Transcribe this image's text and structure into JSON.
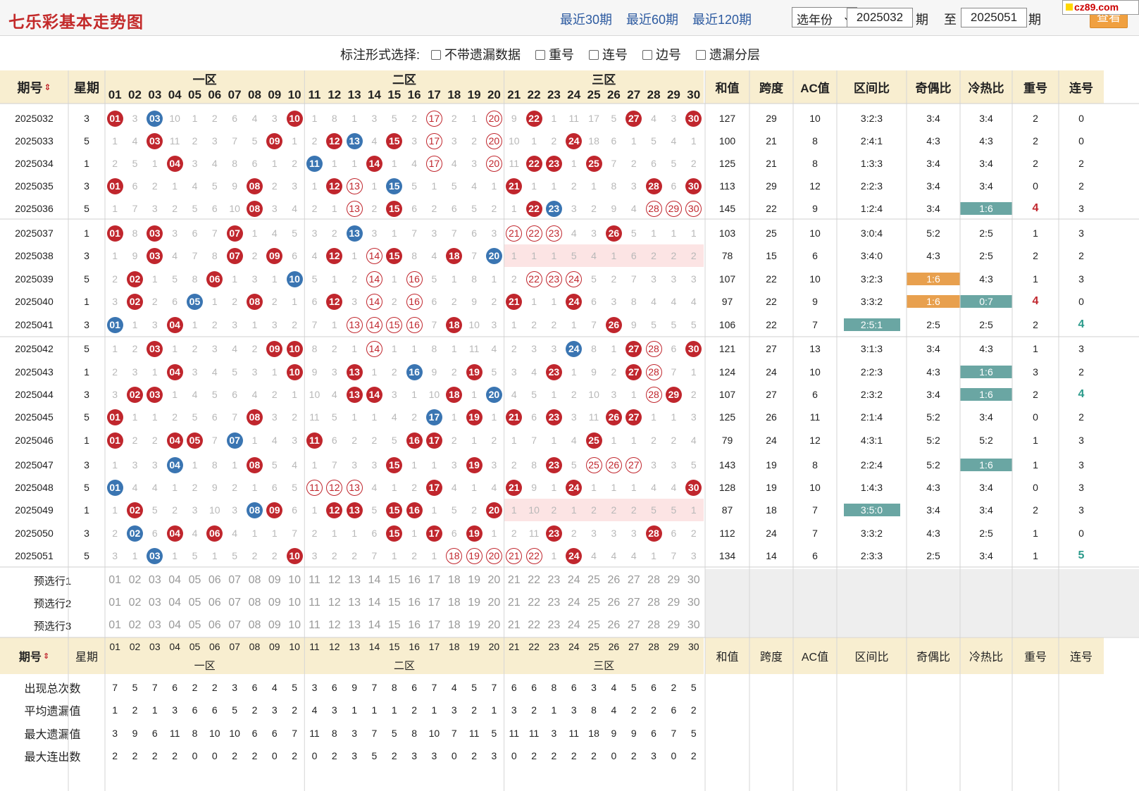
{
  "header": {
    "title": "七乐彩基本走势图",
    "quick_links": [
      "最近30期",
      "最近60期",
      "最近120期"
    ],
    "year_select": "选年份",
    "from_period": "2025032",
    "period_label": "期",
    "to_label": "至",
    "to_period": "2025051",
    "query_button": "查看",
    "watermark": "cz89.com"
  },
  "options": {
    "label": "标注形式选择:",
    "checkboxes": [
      "不带遗漏数据",
      "重号",
      "连号",
      "边号",
      "遗漏分层"
    ]
  },
  "table": {
    "col_period": "期号",
    "col_weekday": "星期",
    "zones": [
      "一区",
      "二区",
      "三区"
    ],
    "numbers": [
      "01",
      "02",
      "03",
      "04",
      "05",
      "06",
      "07",
      "08",
      "09",
      "10",
      "11",
      "12",
      "13",
      "14",
      "15",
      "16",
      "17",
      "18",
      "19",
      "20",
      "21",
      "22",
      "23",
      "24",
      "25",
      "26",
      "27",
      "28",
      "29",
      "30"
    ],
    "stat_headers": [
      "和值",
      "跨度",
      "AC值",
      "区间比",
      "奇偶比",
      "冷热比",
      "重号",
      "连号"
    ],
    "rows": [
      {
        "period": "2025032",
        "weekday": "3",
        "cells": [
          "01r",
          "3",
          "03b",
          "10",
          "1",
          "2",
          "6",
          "4",
          "3",
          "10r",
          "1",
          "8",
          "1",
          "3",
          "5",
          "2",
          "17o",
          "2",
          "1",
          "20o",
          "9",
          "22r",
          "1",
          "11",
          "17",
          "5",
          "27r",
          "4",
          "3",
          "30r"
        ],
        "sum": "127",
        "span": "29",
        "ac": "10",
        "zone_ratio": "3:2:3",
        "odd_even": "3:4",
        "cold_hot": "3:4",
        "repeat": "2",
        "consec": "0"
      },
      {
        "period": "2025033",
        "weekday": "5",
        "cells": [
          "1",
          "4",
          "03r",
          "11",
          "2",
          "3",
          "7",
          "5",
          "09r",
          "1",
          "2",
          "12r",
          "13b",
          "4",
          "15r",
          "3",
          "17o",
          "3",
          "2",
          "20o",
          "10",
          "1",
          "2",
          "24r",
          "18",
          "6",
          "1",
          "5",
          "4",
          "1"
        ],
        "sum": "100",
        "span": "21",
        "ac": "8",
        "zone_ratio": "2:4:1",
        "odd_even": "4:3",
        "cold_hot": "4:3",
        "repeat": "2",
        "consec": "0"
      },
      {
        "period": "2025034",
        "weekday": "1",
        "cells": [
          "2",
          "5",
          "1",
          "04r",
          "3",
          "4",
          "8",
          "6",
          "1",
          "2",
          "11b",
          "1",
          "1",
          "14r",
          "1",
          "4",
          "17o",
          "4",
          "3",
          "20o",
          "11",
          "22r",
          "23r",
          "1",
          "25r",
          "7",
          "2",
          "6",
          "5",
          "2"
        ],
        "sum": "125",
        "span": "21",
        "ac": "8",
        "zone_ratio": "1:3:3",
        "odd_even": "3:4",
        "cold_hot": "3:4",
        "repeat": "2",
        "consec": "2"
      },
      {
        "period": "2025035",
        "weekday": "3",
        "cells": [
          "01r",
          "6",
          "2",
          "1",
          "4",
          "5",
          "9",
          "08r",
          "2",
          "3",
          "1",
          "12r",
          "13o",
          "1",
          "15b",
          "5",
          "1",
          "5",
          "4",
          "1",
          "21r",
          "1",
          "1",
          "2",
          "1",
          "8",
          "3",
          "28r",
          "6",
          "30r"
        ],
        "sum": "113",
        "span": "29",
        "ac": "12",
        "zone_ratio": "2:2:3",
        "odd_even": "3:4",
        "cold_hot": "3:4",
        "repeat": "0",
        "consec": "2"
      },
      {
        "period": "2025036",
        "weekday": "5",
        "cells": [
          "1",
          "7",
          "3",
          "2",
          "5",
          "6",
          "10",
          "08r",
          "3",
          "4",
          "2",
          "1",
          "13o",
          "2",
          "15r",
          "6",
          "2",
          "6",
          "5",
          "2",
          "1",
          "22r",
          "23b",
          "3",
          "2",
          "9",
          "4",
          "28o",
          "29o",
          "30o"
        ],
        "sum": "145",
        "span": "22",
        "ac": "9",
        "zone_ratio": "1:2:4",
        "odd_even": "3:4",
        "cold_hot": "1:6",
        "cold_hot_tag": "teal",
        "repeat": "4",
        "repeat_hl": true,
        "consec": "3"
      },
      {
        "period": "2025037",
        "weekday": "1",
        "cells": [
          "01r",
          "8",
          "03r",
          "3",
          "6",
          "7",
          "07r",
          "1",
          "4",
          "5",
          "3",
          "2",
          "13b",
          "3",
          "1",
          "7",
          "3",
          "7",
          "6",
          "3",
          "21o",
          "22o",
          "23o",
          "4",
          "3",
          "26r",
          "5",
          "1",
          "1",
          "1"
        ],
        "sum": "103",
        "span": "25",
        "ac": "10",
        "zone_ratio": "3:0:4",
        "odd_even": "5:2",
        "cold_hot": "2:5",
        "repeat": "1",
        "consec": "3"
      },
      {
        "period": "2025038",
        "weekday": "3",
        "cells": [
          "1",
          "9",
          "03r",
          "4",
          "7",
          "8",
          "07r",
          "2",
          "09r",
          "6",
          "4",
          "12r",
          "1",
          "14o",
          "15r",
          "8",
          "4",
          "18r",
          "7",
          "20b",
          "1p",
          "1p",
          "1p",
          "5p",
          "4p",
          "1p",
          "6p",
          "2p",
          "2p",
          "2p"
        ],
        "sum": "78",
        "span": "15",
        "ac": "6",
        "zone_ratio": "3:4:0",
        "odd_even": "4:3",
        "cold_hot": "2:5",
        "repeat": "2",
        "consec": "2"
      },
      {
        "period": "2025039",
        "weekday": "5",
        "cells": [
          "2",
          "02r",
          "1",
          "5",
          "8",
          "06r",
          "1",
          "3",
          "1",
          "10b",
          "5",
          "1",
          "2",
          "14o",
          "1",
          "16o",
          "5",
          "1",
          "8",
          "1",
          "2",
          "22o",
          "23o",
          "24o",
          "5",
          "2",
          "7",
          "3",
          "3",
          "3"
        ],
        "sum": "107",
        "span": "22",
        "ac": "10",
        "zone_ratio": "3:2:3",
        "odd_even": "1:6",
        "odd_even_tag": "orange",
        "cold_hot": "4:3",
        "repeat": "1",
        "consec": "3"
      },
      {
        "period": "2025040",
        "weekday": "1",
        "cells": [
          "3",
          "02r",
          "2",
          "6",
          "05b",
          "1",
          "2",
          "08r",
          "2",
          "1",
          "6",
          "12r",
          "3",
          "14o",
          "2",
          "16o",
          "6",
          "2",
          "9",
          "2",
          "21r",
          "1",
          "1",
          "24r",
          "6",
          "3",
          "8",
          "4",
          "4",
          "4"
        ],
        "sum": "97",
        "span": "22",
        "ac": "9",
        "zone_ratio": "3:3:2",
        "odd_even": "1:6",
        "odd_even_tag": "orange",
        "cold_hot": "0:7",
        "cold_hot_tag": "teal",
        "repeat": "4",
        "repeat_hl": true,
        "consec": "0"
      },
      {
        "period": "2025041",
        "weekday": "3",
        "cells": [
          "01b",
          "1",
          "3",
          "04r",
          "1",
          "2",
          "3",
          "1",
          "3",
          "2",
          "7",
          "1",
          "13o",
          "14o",
          "15o",
          "16o",
          "7",
          "18r",
          "10",
          "3",
          "1",
          "2",
          "2",
          "1",
          "7",
          "26r",
          "9",
          "5",
          "5",
          "5"
        ],
        "sum": "106",
        "span": "22",
        "ac": "7",
        "zone_ratio": "2:5:1",
        "zone_ratio_tag": "teal",
        "odd_even": "2:5",
        "cold_hot": "2:5",
        "repeat": "2",
        "consec": "4",
        "consec_hl": true
      },
      {
        "period": "2025042",
        "weekday": "5",
        "cells": [
          "1",
          "2",
          "03r",
          "1",
          "2",
          "3",
          "4",
          "2",
          "09r",
          "10r",
          "8",
          "2",
          "1",
          "14o",
          "1",
          "1",
          "8",
          "1",
          "11",
          "4",
          "2",
          "3",
          "3",
          "24b",
          "8",
          "1",
          "27r",
          "28o",
          "6",
          "30r"
        ],
        "sum": "121",
        "span": "27",
        "ac": "13",
        "zone_ratio": "3:1:3",
        "odd_even": "3:4",
        "cold_hot": "4:3",
        "repeat": "1",
        "consec": "3"
      },
      {
        "period": "2025043",
        "weekday": "1",
        "cells": [
          "2",
          "3",
          "1",
          "04r",
          "3",
          "4",
          "5",
          "3",
          "1",
          "10r",
          "9",
          "3",
          "13r",
          "1",
          "2",
          "16b",
          "9",
          "2",
          "19r",
          "5",
          "3",
          "4",
          "23r",
          "1",
          "9",
          "2",
          "27r",
          "28o",
          "7",
          "1"
        ],
        "sum": "124",
        "span": "24",
        "ac": "10",
        "zone_ratio": "2:2:3",
        "odd_even": "4:3",
        "cold_hot": "1:6",
        "cold_hot_tag": "teal",
        "repeat": "3",
        "consec": "2"
      },
      {
        "period": "2025044",
        "weekday": "3",
        "cells": [
          "3",
          "02r",
          "03r",
          "1",
          "4",
          "5",
          "6",
          "4",
          "2",
          "1",
          "10",
          "4",
          "13r",
          "14r",
          "3",
          "1",
          "10",
          "18r",
          "1",
          "20b",
          "4",
          "5",
          "1",
          "2",
          "10",
          "3",
          "1",
          "28o",
          "29r",
          "2"
        ],
        "sum": "107",
        "span": "27",
        "ac": "6",
        "zone_ratio": "2:3:2",
        "odd_even": "3:4",
        "cold_hot": "1:6",
        "cold_hot_tag": "teal",
        "repeat": "2",
        "consec": "4",
        "consec_hl": true
      },
      {
        "period": "2025045",
        "weekday": "5",
        "cells": [
          "01r",
          "1",
          "1",
          "2",
          "5",
          "6",
          "7",
          "08r",
          "3",
          "2",
          "11",
          "5",
          "1",
          "1",
          "4",
          "2",
          "17b",
          "1",
          "19r",
          "1",
          "21r",
          "6",
          "23r",
          "3",
          "11",
          "26r",
          "27r",
          "1",
          "1",
          "3"
        ],
        "sum": "125",
        "span": "26",
        "ac": "11",
        "zone_ratio": "2:1:4",
        "odd_even": "5:2",
        "cold_hot": "3:4",
        "repeat": "0",
        "consec": "2"
      },
      {
        "period": "2025046",
        "weekday": "1",
        "cells": [
          "01r",
          "2",
          "2",
          "04r",
          "05r",
          "7",
          "07b",
          "1",
          "4",
          "3",
          "11r",
          "6",
          "2",
          "2",
          "5",
          "16r",
          "17r",
          "2",
          "1",
          "2",
          "1",
          "7",
          "1",
          "4",
          "25r",
          "1",
          "1",
          "2",
          "2",
          "4"
        ],
        "sum": "79",
        "span": "24",
        "ac": "12",
        "zone_ratio": "4:3:1",
        "odd_even": "5:2",
        "cold_hot": "5:2",
        "repeat": "1",
        "consec": "3"
      },
      {
        "period": "2025047",
        "weekday": "3",
        "cells": [
          "1",
          "3",
          "3",
          "04b",
          "1",
          "8",
          "1",
          "08r",
          "5",
          "4",
          "1",
          "7",
          "3",
          "3",
          "15r",
          "1",
          "1",
          "3",
          "19r",
          "3",
          "2",
          "8",
          "23r",
          "5",
          "25o",
          "26o",
          "27o",
          "3",
          "3",
          "5"
        ],
        "sum": "143",
        "span": "19",
        "ac": "8",
        "zone_ratio": "2:2:4",
        "odd_even": "5:2",
        "cold_hot": "1:6",
        "cold_hot_tag": "teal",
        "repeat": "1",
        "consec": "3"
      },
      {
        "period": "2025048",
        "weekday": "5",
        "cells": [
          "01b",
          "4",
          "4",
          "1",
          "2",
          "9",
          "2",
          "1",
          "6",
          "5",
          "11o",
          "12o",
          "13o",
          "4",
          "1",
          "2",
          "17r",
          "4",
          "1",
          "4",
          "21r",
          "9",
          "1",
          "24r",
          "1",
          "1",
          "1",
          "4",
          "4",
          "30r"
        ],
        "sum": "128",
        "span": "19",
        "ac": "10",
        "zone_ratio": "1:4:3",
        "odd_even": "4:3",
        "cold_hot": "3:4",
        "repeat": "0",
        "consec": "3"
      },
      {
        "period": "2025049",
        "weekday": "1",
        "cells": [
          "1",
          "02r",
          "5",
          "2",
          "3",
          "10",
          "3",
          "08b",
          "09r",
          "6",
          "1",
          "12r",
          "13r",
          "5",
          "15r",
          "16r",
          "1",
          "5",
          "2",
          "20r",
          "1p",
          "10p",
          "2p",
          "1p",
          "2p",
          "2p",
          "2p",
          "5p",
          "5p",
          "1p"
        ],
        "sum": "87",
        "span": "18",
        "ac": "7",
        "zone_ratio": "3:5:0",
        "zone_ratio_tag": "teal",
        "odd_even": "3:4",
        "cold_hot": "3:4",
        "repeat": "2",
        "consec": "3"
      },
      {
        "period": "2025050",
        "weekday": "3",
        "cells": [
          "2",
          "02b",
          "6",
          "04r",
          "4",
          "06r",
          "4",
          "1",
          "1",
          "7",
          "2",
          "1",
          "1",
          "6",
          "15r",
          "1",
          "17r",
          "6",
          "19r",
          "1",
          "2",
          "11",
          "23r",
          "2",
          "3",
          "3",
          "3",
          "28r",
          "6",
          "2"
        ],
        "sum": "112",
        "span": "24",
        "ac": "7",
        "zone_ratio": "3:3:2",
        "odd_even": "4:3",
        "cold_hot": "2:5",
        "repeat": "1",
        "consec": "0"
      },
      {
        "period": "2025051",
        "weekday": "5",
        "cells": [
          "3",
          "1",
          "03b",
          "1",
          "5",
          "1",
          "5",
          "2",
          "2",
          "10r",
          "3",
          "2",
          "2",
          "7",
          "1",
          "2",
          "1",
          "18o",
          "19o",
          "20o",
          "21o",
          "22o",
          "1",
          "24r",
          "4",
          "4",
          "4",
          "1",
          "7",
          "3"
        ],
        "sum": "134",
        "span": "14",
        "ac": "6",
        "zone_ratio": "2:3:3",
        "odd_even": "2:5",
        "cold_hot": "3:4",
        "repeat": "1",
        "consec": "5",
        "consec_hl": true
      }
    ],
    "preselect_rows": [
      "预选行1",
      "预选行2",
      "预选行3"
    ],
    "stats": [
      {
        "label": "出现总次数",
        "values": [
          "7",
          "5",
          "7",
          "6",
          "2",
          "2",
          "3",
          "6",
          "4",
          "5",
          "3",
          "6",
          "9",
          "7",
          "8",
          "6",
          "7",
          "4",
          "5",
          "7",
          "6",
          "6",
          "8",
          "6",
          "3",
          "4",
          "5",
          "6",
          "2",
          "5"
        ]
      },
      {
        "label": "平均遗漏值",
        "values": [
          "1",
          "2",
          "1",
          "3",
          "6",
          "6",
          "5",
          "2",
          "3",
          "2",
          "4",
          "3",
          "1",
          "1",
          "1",
          "2",
          "1",
          "3",
          "2",
          "1",
          "3",
          "2",
          "1",
          "3",
          "8",
          "4",
          "2",
          "2",
          "6",
          "2"
        ]
      },
      {
        "label": "最大遗漏值",
        "values": [
          "3",
          "9",
          "6",
          "11",
          "8",
          "10",
          "10",
          "6",
          "6",
          "7",
          "11",
          "8",
          "3",
          "7",
          "5",
          "8",
          "10",
          "7",
          "11",
          "5",
          "11",
          "11",
          "3",
          "11",
          "18",
          "9",
          "9",
          "6",
          "7",
          "5"
        ]
      },
      {
        "label": "最大连出数",
        "values": [
          "2",
          "2",
          "2",
          "2",
          "0",
          "0",
          "2",
          "2",
          "0",
          "2",
          "0",
          "2",
          "3",
          "5",
          "2",
          "3",
          "3",
          "0",
          "2",
          "3",
          "0",
          "2",
          "2",
          "2",
          "2",
          "0",
          "2",
          "3",
          "0",
          "2"
        ]
      }
    ]
  }
}
